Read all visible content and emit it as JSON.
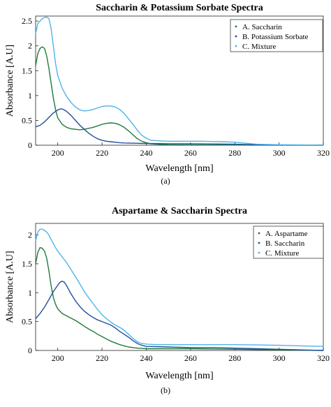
{
  "chart_data": [
    {
      "type": "line",
      "title": "Saccharin & Potassium Sorbate Spectra",
      "xlabel": "Wavelength [nm]",
      "ylabel": "Absorbance [A.U]",
      "xlim": [
        190,
        320
      ],
      "ylim": [
        0,
        2.6
      ],
      "xticks": [
        200,
        220,
        240,
        260,
        280,
        300,
        320
      ],
      "yticks": [
        0,
        0.5,
        1,
        1.5,
        2,
        2.5
      ],
      "xtick_labels": [
        "200",
        "220",
        "240",
        "260",
        "280",
        "300",
        "320"
      ],
      "ytick_labels": [
        "0",
        "0.5",
        "1",
        "1.5",
        "2",
        "2.5"
      ],
      "grid": false,
      "legend_position": "top-right",
      "caption": "(a)",
      "series": [
        {
          "name": "A. Saccharin",
          "color": "#1f7a3a",
          "x": [
            190,
            191,
            192,
            193,
            194,
            195,
            196,
            197,
            198,
            199,
            200,
            202,
            204,
            206,
            208,
            210,
            212,
            214,
            216,
            218,
            220,
            222,
            224,
            226,
            228,
            230,
            232,
            234,
            236,
            238,
            240,
            242,
            245,
            250,
            260,
            280,
            300,
            320
          ],
          "y": [
            1.6,
            1.85,
            1.95,
            1.98,
            1.95,
            1.8,
            1.55,
            1.25,
            0.95,
            0.72,
            0.55,
            0.42,
            0.36,
            0.33,
            0.32,
            0.31,
            0.32,
            0.34,
            0.36,
            0.39,
            0.42,
            0.44,
            0.45,
            0.44,
            0.41,
            0.36,
            0.29,
            0.21,
            0.13,
            0.08,
            0.05,
            0.03,
            0.02,
            0.01,
            0.005,
            0.003,
            0.002,
            0.0
          ]
        },
        {
          "name": "B. Potassium Sorbate",
          "color": "#1f4e9c",
          "x": [
            190,
            192,
            194,
            196,
            198,
            200,
            201,
            202,
            203,
            204,
            206,
            208,
            210,
            212,
            214,
            216,
            218,
            220,
            222,
            224,
            226,
            228,
            230,
            235,
            240,
            250,
            260,
            270,
            280,
            290,
            300,
            320
          ],
          "y": [
            0.37,
            0.4,
            0.47,
            0.56,
            0.65,
            0.71,
            0.73,
            0.73,
            0.71,
            0.68,
            0.6,
            0.5,
            0.4,
            0.32,
            0.24,
            0.18,
            0.13,
            0.1,
            0.08,
            0.07,
            0.06,
            0.05,
            0.045,
            0.04,
            0.035,
            0.03,
            0.03,
            0.025,
            0.02,
            0.01,
            0.005,
            0.0
          ]
        },
        {
          "name": "C. Mixture",
          "color": "#4fb3e8",
          "x": [
            190,
            191,
            192,
            193,
            194,
            195,
            196,
            197,
            198,
            199,
            200,
            202,
            204,
            206,
            208,
            210,
            212,
            214,
            216,
            218,
            220,
            222,
            224,
            226,
            228,
            230,
            232,
            234,
            236,
            238,
            240,
            242,
            245,
            250,
            255,
            260,
            265,
            270,
            275,
            280,
            285,
            290,
            300,
            310,
            320
          ],
          "y": [
            2.25,
            2.45,
            2.5,
            2.55,
            2.57,
            2.58,
            2.55,
            2.35,
            2.0,
            1.65,
            1.4,
            1.15,
            0.98,
            0.86,
            0.77,
            0.71,
            0.69,
            0.7,
            0.72,
            0.75,
            0.78,
            0.79,
            0.79,
            0.77,
            0.72,
            0.64,
            0.53,
            0.42,
            0.3,
            0.2,
            0.14,
            0.1,
            0.09,
            0.08,
            0.08,
            0.08,
            0.08,
            0.075,
            0.07,
            0.06,
            0.04,
            0.02,
            0.01,
            0.005,
            0.0
          ]
        }
      ]
    },
    {
      "type": "line",
      "title": "Aspartame & Saccharin Spectra",
      "xlabel": "Wavelength [nm]",
      "ylabel": "Absorbance [A.U]",
      "xlim": [
        190,
        320
      ],
      "ylim": [
        0,
        2.2
      ],
      "xticks": [
        200,
        220,
        240,
        260,
        280,
        300,
        320
      ],
      "yticks": [
        0,
        0.5,
        1,
        1.5,
        2
      ],
      "xtick_labels": [
        "200",
        "220",
        "240",
        "260",
        "280",
        "300",
        "320"
      ],
      "ytick_labels": [
        "0",
        "0.5",
        "1",
        "1.5",
        "2"
      ],
      "grid": false,
      "legend_position": "top-right",
      "caption": "(b)",
      "series": [
        {
          "name": "A. Aspartame",
          "color": "#1f7a3a",
          "x": [
            190,
            191,
            192,
            193,
            194,
            195,
            196,
            197,
            198,
            199,
            200,
            202,
            204,
            206,
            208,
            210,
            212,
            214,
            216,
            218,
            220,
            222,
            224,
            226,
            228,
            230,
            232,
            234,
            236,
            238,
            240,
            250,
            260,
            270,
            280,
            300,
            320
          ],
          "y": [
            1.5,
            1.7,
            1.78,
            1.77,
            1.72,
            1.6,
            1.38,
            1.12,
            0.92,
            0.8,
            0.72,
            0.64,
            0.6,
            0.56,
            0.52,
            0.47,
            0.42,
            0.37,
            0.33,
            0.28,
            0.24,
            0.2,
            0.16,
            0.13,
            0.1,
            0.08,
            0.06,
            0.05,
            0.04,
            0.035,
            0.03,
            0.03,
            0.03,
            0.025,
            0.02,
            0.01,
            0.0
          ]
        },
        {
          "name": "B. Saccharin",
          "color": "#1f4e9c",
          "x": [
            190,
            192,
            194,
            196,
            198,
            200,
            201,
            202,
            203,
            204,
            206,
            208,
            210,
            212,
            214,
            216,
            218,
            220,
            222,
            224,
            226,
            228,
            230,
            232,
            234,
            236,
            238,
            240,
            250,
            260,
            270,
            280,
            290,
            300,
            310,
            320
          ],
          "y": [
            0.55,
            0.64,
            0.75,
            0.88,
            1.02,
            1.13,
            1.18,
            1.2,
            1.18,
            1.12,
            0.98,
            0.86,
            0.76,
            0.68,
            0.62,
            0.57,
            0.53,
            0.5,
            0.47,
            0.44,
            0.39,
            0.33,
            0.28,
            0.23,
            0.17,
            0.12,
            0.09,
            0.07,
            0.06,
            0.05,
            0.05,
            0.04,
            0.03,
            0.02,
            0.01,
            0.0
          ]
        },
        {
          "name": "C. Mixture",
          "color": "#4fb3e8",
          "x": [
            190,
            191,
            192,
            193,
            194,
            195,
            196,
            197,
            198,
            199,
            200,
            202,
            204,
            206,
            208,
            210,
            212,
            214,
            216,
            218,
            220,
            222,
            224,
            226,
            228,
            230,
            232,
            234,
            236,
            238,
            240,
            245,
            250,
            260,
            270,
            280,
            290,
            300,
            310,
            320
          ],
          "y": [
            1.9,
            2.05,
            2.1,
            2.1,
            2.08,
            2.05,
            2.0,
            1.92,
            1.85,
            1.78,
            1.72,
            1.62,
            1.52,
            1.4,
            1.28,
            1.15,
            1.02,
            0.91,
            0.81,
            0.71,
            0.62,
            0.55,
            0.49,
            0.44,
            0.4,
            0.35,
            0.28,
            0.21,
            0.15,
            0.12,
            0.11,
            0.1,
            0.1,
            0.1,
            0.1,
            0.1,
            0.095,
            0.09,
            0.08,
            0.07
          ]
        }
      ]
    }
  ]
}
